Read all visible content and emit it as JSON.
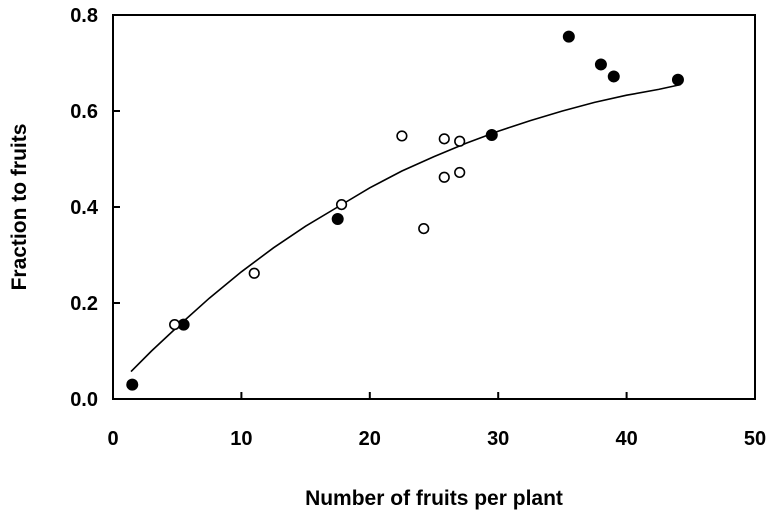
{
  "chart_data": {
    "type": "scatter",
    "title": "",
    "xlabel": "Number of fruits per plant",
    "ylabel": "Fraction to fruits",
    "xlim": [
      0,
      50
    ],
    "ylim": [
      0,
      0.8
    ],
    "x_ticks": [
      "0",
      "10",
      "20",
      "30",
      "40",
      "50"
    ],
    "y_ticks": [
      "0.0",
      "0.2",
      "0.4",
      "0.6",
      "0.8"
    ],
    "grid": false,
    "legend": "none",
    "series": [
      {
        "marker": "filled-circle",
        "points": [
          {
            "x": 1.5,
            "y": 0.03
          },
          {
            "x": 5.5,
            "y": 0.155
          },
          {
            "x": 17.5,
            "y": 0.375
          },
          {
            "x": 29.5,
            "y": 0.55
          },
          {
            "x": 35.5,
            "y": 0.755
          },
          {
            "x": 38,
            "y": 0.697
          },
          {
            "x": 39,
            "y": 0.672
          },
          {
            "x": 44,
            "y": 0.665
          }
        ]
      },
      {
        "marker": "open-circle",
        "points": [
          {
            "x": 4.8,
            "y": 0.155
          },
          {
            "x": 11,
            "y": 0.262
          },
          {
            "x": 17.8,
            "y": 0.405
          },
          {
            "x": 22.5,
            "y": 0.548
          },
          {
            "x": 24.2,
            "y": 0.355
          },
          {
            "x": 25.8,
            "y": 0.542
          },
          {
            "x": 25.8,
            "y": 0.462
          },
          {
            "x": 27,
            "y": 0.537
          },
          {
            "x": 27,
            "y": 0.472
          }
        ]
      }
    ],
    "fit_curve": {
      "type": "line",
      "x": [
        1.4,
        3,
        5,
        7.5,
        10,
        12.5,
        15,
        17.5,
        20,
        22.5,
        25,
        27.5,
        30,
        32.5,
        35,
        37.5,
        40,
        42.5,
        44.2
      ],
      "y": [
        0.057,
        0.1,
        0.15,
        0.21,
        0.265,
        0.315,
        0.36,
        0.4,
        0.44,
        0.475,
        0.505,
        0.533,
        0.558,
        0.58,
        0.6,
        0.618,
        0.633,
        0.645,
        0.655
      ]
    }
  }
}
